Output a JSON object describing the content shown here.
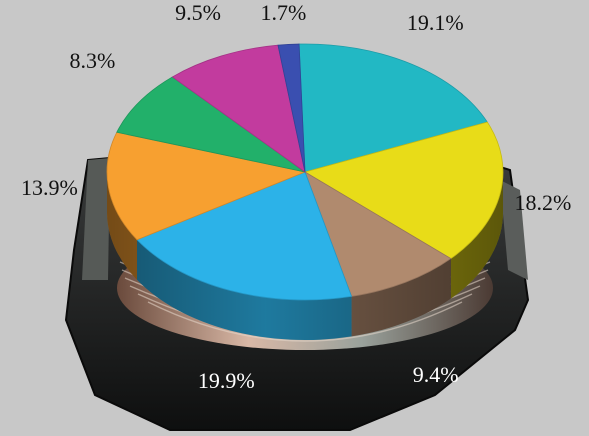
{
  "chart_data": {
    "type": "pie",
    "title": "",
    "slices": [
      {
        "label": "19.1%",
        "value": 19.1,
        "color": "#22b8c4"
      },
      {
        "label": "18.2%",
        "value": 18.2,
        "color": "#e8dc18"
      },
      {
        "label": "9.4%",
        "value": 9.4,
        "color": "#b08a6e"
      },
      {
        "label": "19.9%",
        "value": 19.9,
        "color": "#2cb2e8"
      },
      {
        "label": "13.9%",
        "value": 13.9,
        "color": "#f7a030"
      },
      {
        "label": "8.3%",
        "value": 8.3,
        "color": "#22b06a"
      },
      {
        "label": "9.5%",
        "value": 9.5,
        "color": "#c23b9e"
      },
      {
        "label": "1.7%",
        "value": 1.7,
        "color": "#3a4fb0"
      }
    ]
  }
}
